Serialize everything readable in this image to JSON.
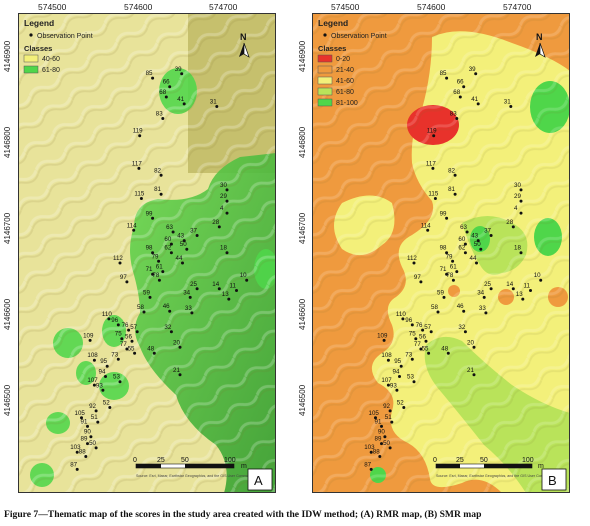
{
  "x_ticks": [
    "574500",
    "574600",
    "574700"
  ],
  "y_ticks": [
    "4146900",
    "4146800",
    "4146700",
    "4146600",
    "4146500"
  ],
  "observation_label": "Observation Point",
  "legend_title": "Legend",
  "classes_title": "Classes",
  "north_letter": "N",
  "scale": {
    "ticks": [
      "0",
      "25",
      "50",
      "100"
    ],
    "unit": "m"
  },
  "credits": "Source: Esri, Maxar, Earthstar Geographics, and the GIS User Community",
  "maps": [
    {
      "label": "A",
      "classes": [
        {
          "label": "40-60",
          "color": "#f3f07a"
        },
        {
          "label": "61-80",
          "color": "#4fd64a"
        }
      ]
    },
    {
      "label": "B",
      "classes": [
        {
          "label": "0-20",
          "color": "#e8322b"
        },
        {
          "label": "21-40",
          "color": "#ef9a3e"
        },
        {
          "label": "41-60",
          "color": "#f3f07a"
        },
        {
          "label": "61-80",
          "color": "#b9e35a"
        },
        {
          "label": "81-100",
          "color": "#4fd64a"
        }
      ]
    }
  ],
  "points": [
    {
      "id": "85",
      "x": 574628,
      "y": 4146865
    },
    {
      "id": "39",
      "x": 574662,
      "y": 4146870
    },
    {
      "id": "66",
      "x": 574648,
      "y": 4146855
    },
    {
      "id": "68",
      "x": 574644,
      "y": 4146843
    },
    {
      "id": "41",
      "x": 574665,
      "y": 4146835
    },
    {
      "id": "31",
      "x": 574703,
      "y": 4146832
    },
    {
      "id": "83",
      "x": 574640,
      "y": 4146818
    },
    {
      "id": "119",
      "x": 574613,
      "y": 4146798
    },
    {
      "id": "117",
      "x": 574612,
      "y": 4146760
    },
    {
      "id": "82",
      "x": 574638,
      "y": 4146752
    },
    {
      "id": "81",
      "x": 574638,
      "y": 4146730
    },
    {
      "id": "30",
      "x": 574715,
      "y": 4146735
    },
    {
      "id": "29",
      "x": 574715,
      "y": 4146722
    },
    {
      "id": "115",
      "x": 574615,
      "y": 4146725
    },
    {
      "id": "4",
      "x": 574715,
      "y": 4146708
    },
    {
      "id": "99",
      "x": 574628,
      "y": 4146702
    },
    {
      "id": "28",
      "x": 574706,
      "y": 4146692
    },
    {
      "id": "114",
      "x": 574606,
      "y": 4146688
    },
    {
      "id": "63",
      "x": 574652,
      "y": 4146686
    },
    {
      "id": "37",
      "x": 574680,
      "y": 4146682
    },
    {
      "id": "43",
      "x": 574665,
      "y": 4146676
    },
    {
      "id": "60",
      "x": 574650,
      "y": 4146672
    },
    {
      "id": "50",
      "x": 574668,
      "y": 4146666
    },
    {
      "id": "62",
      "x": 574650,
      "y": 4146662
    },
    {
      "id": "98",
      "x": 574628,
      "y": 4146662
    },
    {
      "id": "79",
      "x": 574635,
      "y": 4146652
    },
    {
      "id": "44",
      "x": 574663,
      "y": 4146650
    },
    {
      "id": "18",
      "x": 574715,
      "y": 4146662
    },
    {
      "id": "112",
      "x": 574590,
      "y": 4146650
    },
    {
      "id": "61",
      "x": 574640,
      "y": 4146640
    },
    {
      "id": "71",
      "x": 574628,
      "y": 4146637
    },
    {
      "id": "78",
      "x": 574636,
      "y": 4146630
    },
    {
      "id": "10",
      "x": 574738,
      "y": 4146630
    },
    {
      "id": "97",
      "x": 574598,
      "y": 4146628
    },
    {
      "id": "25",
      "x": 574680,
      "y": 4146620
    },
    {
      "id": "14",
      "x": 574706,
      "y": 4146620
    },
    {
      "id": "11",
      "x": 574726,
      "y": 4146618
    },
    {
      "id": "34",
      "x": 574672,
      "y": 4146610
    },
    {
      "id": "59",
      "x": 574625,
      "y": 4146610
    },
    {
      "id": "13",
      "x": 574717,
      "y": 4146608
    },
    {
      "id": "58",
      "x": 574618,
      "y": 4146593
    },
    {
      "id": "46",
      "x": 574648,
      "y": 4146594
    },
    {
      "id": "33",
      "x": 574674,
      "y": 4146592
    },
    {
      "id": "110",
      "x": 574577,
      "y": 4146585
    },
    {
      "id": "96",
      "x": 574588,
      "y": 4146578
    },
    {
      "id": "76",
      "x": 574600,
      "y": 4146572
    },
    {
      "id": "57",
      "x": 574610,
      "y": 4146570
    },
    {
      "id": "32",
      "x": 574650,
      "y": 4146570
    },
    {
      "id": "75",
      "x": 574592,
      "y": 4146562
    },
    {
      "id": "56",
      "x": 574604,
      "y": 4146559
    },
    {
      "id": "109",
      "x": 574555,
      "y": 4146560
    },
    {
      "id": "77",
      "x": 574598,
      "y": 4146550
    },
    {
      "id": "55",
      "x": 574607,
      "y": 4146545
    },
    {
      "id": "20",
      "x": 574660,
      "y": 4146552
    },
    {
      "id": "48",
      "x": 574630,
      "y": 4146545
    },
    {
      "id": "73",
      "x": 574588,
      "y": 4146538
    },
    {
      "id": "108",
      "x": 574560,
      "y": 4146537
    },
    {
      "id": "21",
      "x": 574660,
      "y": 4146520
    },
    {
      "id": "95",
      "x": 574575,
      "y": 4146530
    },
    {
      "id": "94",
      "x": 574573,
      "y": 4146518
    },
    {
      "id": "53",
      "x": 574590,
      "y": 4146512
    },
    {
      "id": "107",
      "x": 574560,
      "y": 4146508
    },
    {
      "id": "93",
      "x": 574570,
      "y": 4146502
    },
    {
      "id": "52",
      "x": 574578,
      "y": 4146482
    },
    {
      "id": "92",
      "x": 574562,
      "y": 4146478
    },
    {
      "id": "105",
      "x": 574545,
      "y": 4146470
    },
    {
      "id": "51",
      "x": 574564,
      "y": 4146465
    },
    {
      "id": "91",
      "x": 574552,
      "y": 4146460
    },
    {
      "id": "90",
      "x": 574556,
      "y": 4146448
    },
    {
      "id": "89",
      "x": 574552,
      "y": 4146440
    },
    {
      "id": "50",
      "x": 574562,
      "y": 4146435
    },
    {
      "id": "103",
      "x": 574540,
      "y": 4146430
    },
    {
      "id": "88",
      "x": 574550,
      "y": 4146425
    },
    {
      "id": "87",
      "x": 574540,
      "y": 4146410
    }
  ],
  "caption": "Figure 7—Thematic map of the scores in the study area created with the IDW method; (A) RMR map, (B) SMR map"
}
